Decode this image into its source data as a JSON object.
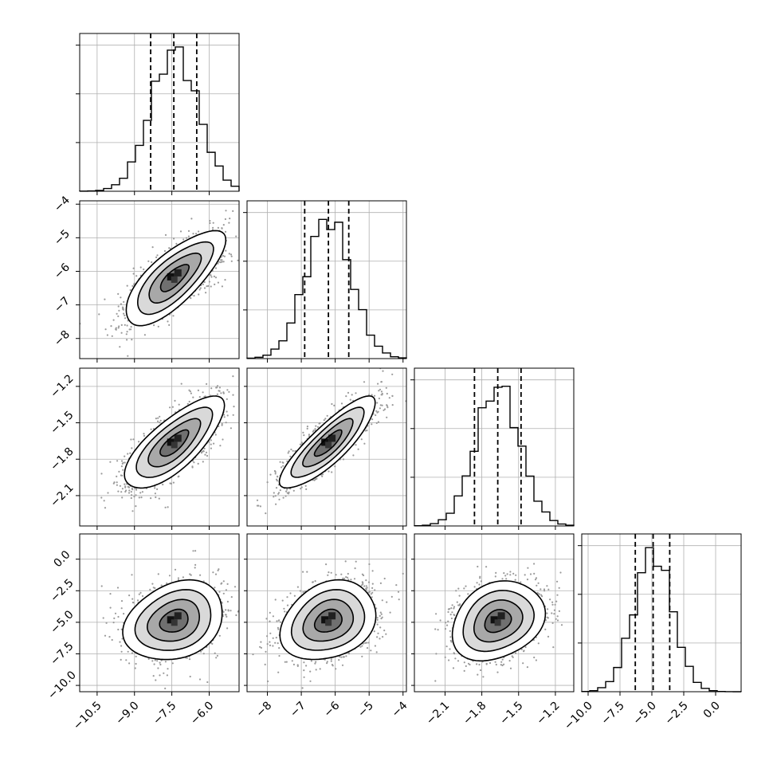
{
  "chart_data": {
    "type": "corner",
    "grid": true,
    "parameters": [
      {
        "index": 0,
        "range": [
          -11.2,
          -4.8
        ],
        "mean": -7.4,
        "sigma": 0.95,
        "quantiles": [
          -8.35,
          -7.42,
          -6.5
        ],
        "ticks": [
          -10.5,
          -9.0,
          -7.5,
          -6.0
        ],
        "tick_labels": [
          "−10.5",
          "−9.0",
          "−7.5",
          "−6.0"
        ]
      },
      {
        "index": 1,
        "range": [
          -8.6,
          -3.9
        ],
        "mean": -6.2,
        "sigma": 0.67,
        "quantiles": [
          -6.9,
          -6.2,
          -5.6
        ],
        "ticks": [
          -8,
          -7,
          -6,
          -5,
          -4
        ],
        "tick_labels": [
          "−8",
          "−7",
          "−6",
          "−5",
          "−4"
        ]
      },
      {
        "index": 2,
        "range": [
          -2.35,
          -1.05
        ],
        "mean": -1.67,
        "sigma": 0.18,
        "quantiles": [
          -1.86,
          -1.67,
          -1.48
        ],
        "ticks": [
          -2.1,
          -1.8,
          -1.5,
          -1.2
        ],
        "tick_labels": [
          "−2.1",
          "−1.8",
          "−1.5",
          "−1.2"
        ]
      },
      {
        "index": 3,
        "range": [
          -10.5,
          2.0
        ],
        "mean": -4.9,
        "sigma": 1.5,
        "quantiles": [
          -6.3,
          -4.9,
          -3.6
        ],
        "ticks": [
          -10.0,
          -7.5,
          -5.0,
          -2.5,
          0.0
        ],
        "tick_labels": [
          "−10.0",
          "−7.5",
          "−5.0",
          "−2.5",
          "0.0"
        ]
      }
    ],
    "pairs": [
      {
        "x": 0,
        "y": 1,
        "correlation": 0.75
      },
      {
        "x": 0,
        "y": 2,
        "correlation": 0.75
      },
      {
        "x": 1,
        "y": 2,
        "correlation": 0.85
      },
      {
        "x": 0,
        "y": 3,
        "correlation": 0.25
      },
      {
        "x": 1,
        "y": 3,
        "correlation": 0.25
      },
      {
        "x": 2,
        "y": 3,
        "correlation": 0.25
      }
    ],
    "histogram_bins": 20,
    "contour_levels_sigma": [
      0.6,
      1.1,
      1.6,
      2.1
    ]
  }
}
